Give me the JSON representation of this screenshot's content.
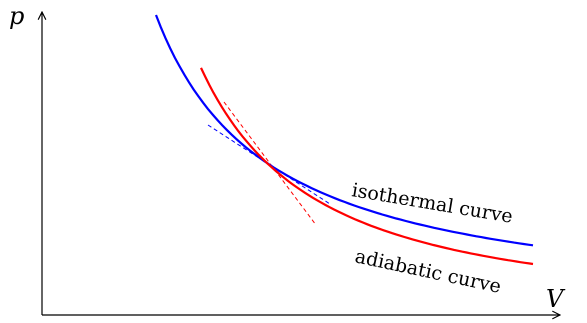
{
  "chart_data": {
    "type": "line",
    "title": "",
    "xlabel": "V",
    "ylabel": "p",
    "grid": false,
    "legend": "none",
    "series": [
      {
        "name": "isothermal curve",
        "color": "#0000ff",
        "kind": "isothermal"
      },
      {
        "name": "adiabatic curve",
        "color": "#ff0000",
        "kind": "adiabatic"
      }
    ],
    "tangents": [
      {
        "series": "isothermal curve",
        "style": "dashed",
        "color": "#0000ff"
      },
      {
        "series": "adiabatic curve",
        "style": "dashed",
        "color": "#ff0000"
      }
    ],
    "intersection": "single common point"
  }
}
